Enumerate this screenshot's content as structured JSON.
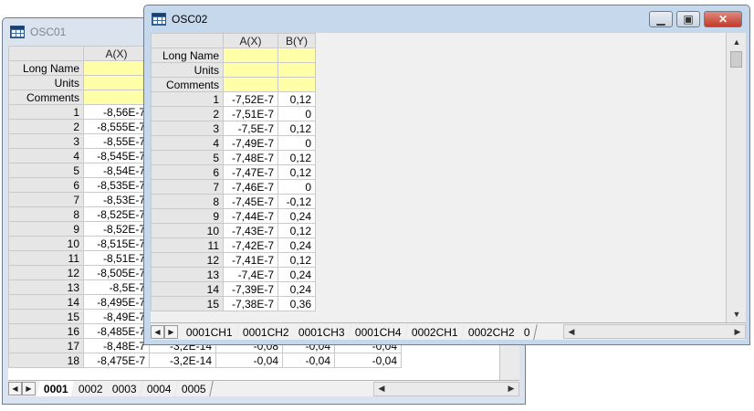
{
  "osc01": {
    "title": "OSC01",
    "columns": [
      "A(X)"
    ],
    "meta_labels": [
      "Long Name",
      "Units",
      "Comments"
    ],
    "rows": [
      {
        "n": "1",
        "a": "-8,56E-7"
      },
      {
        "n": "2",
        "a": "-8,555E-7"
      },
      {
        "n": "3",
        "a": "-8,55E-7"
      },
      {
        "n": "4",
        "a": "-8,545E-7"
      },
      {
        "n": "5",
        "a": "-8,54E-7"
      },
      {
        "n": "6",
        "a": "-8,535E-7"
      },
      {
        "n": "7",
        "a": "-8,53E-7"
      },
      {
        "n": "8",
        "a": "-8,525E-7"
      },
      {
        "n": "9",
        "a": "-8,52E-7"
      },
      {
        "n": "10",
        "a": "-8,515E-7"
      },
      {
        "n": "11",
        "a": "-8,51E-7"
      },
      {
        "n": "12",
        "a": "-8,505E-7"
      },
      {
        "n": "13",
        "a": "-8,5E-7"
      },
      {
        "n": "14",
        "a": "-8,495E-7"
      },
      {
        "n": "15",
        "a": "-8,49E-7"
      },
      {
        "n": "16",
        "a": "-8,485E-7"
      },
      {
        "n": "17",
        "a": "-8,48E-7",
        "b": "-3,2E-14",
        "c": "-0,08",
        "d": "-0,04",
        "e": "-0,04"
      },
      {
        "n": "18",
        "a": "-8,475E-7",
        "b": "-3,2E-14",
        "c": "-0,04",
        "d": "-0,04",
        "e": "-0,04"
      }
    ],
    "tabs": [
      "0001",
      "0002",
      "0003",
      "0004",
      "0005"
    ]
  },
  "osc02": {
    "title": "OSC02",
    "columns": [
      "A(X)",
      "B(Y)"
    ],
    "meta_labels": [
      "Long Name",
      "Units",
      "Comments"
    ],
    "rows": [
      {
        "n": "1",
        "a": "-7,52E-7",
        "b": "0,12"
      },
      {
        "n": "2",
        "a": "-7,51E-7",
        "b": "0"
      },
      {
        "n": "3",
        "a": "-7,5E-7",
        "b": "0,12"
      },
      {
        "n": "4",
        "a": "-7,49E-7",
        "b": "0"
      },
      {
        "n": "5",
        "a": "-7,48E-7",
        "b": "0,12"
      },
      {
        "n": "6",
        "a": "-7,47E-7",
        "b": "0,12"
      },
      {
        "n": "7",
        "a": "-7,46E-7",
        "b": "0"
      },
      {
        "n": "8",
        "a": "-7,45E-7",
        "b": "-0,12"
      },
      {
        "n": "9",
        "a": "-7,44E-7",
        "b": "0,24"
      },
      {
        "n": "10",
        "a": "-7,43E-7",
        "b": "0,12"
      },
      {
        "n": "11",
        "a": "-7,42E-7",
        "b": "0,24"
      },
      {
        "n": "12",
        "a": "-7,41E-7",
        "b": "0,12"
      },
      {
        "n": "13",
        "a": "-7,4E-7",
        "b": "0,24"
      },
      {
        "n": "14",
        "a": "-7,39E-7",
        "b": "0,24"
      },
      {
        "n": "15",
        "a": "-7,38E-7",
        "b": "0,36"
      }
    ],
    "tabs": [
      "0001CH1",
      "0001CH2",
      "0001CH3",
      "0001CH4",
      "0002CH1",
      "0002CH2",
      "0"
    ]
  },
  "glyphs": {
    "minimize": "▁",
    "restore": "▣",
    "close": "✕",
    "left": "◀",
    "right": "▶",
    "up": "▲",
    "down": "▼"
  },
  "colors": {
    "meta_row": "#ffffa8",
    "close_button": "#c94a3c",
    "inactive_title": "#dbe4ee",
    "active_title": "#c6d8ec"
  }
}
